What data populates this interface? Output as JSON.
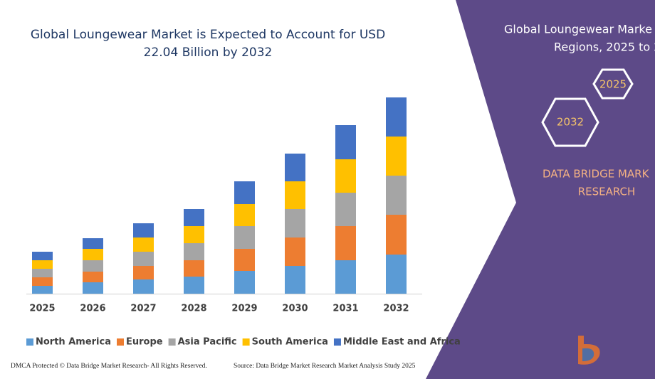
{
  "chart_data": {
    "type": "stacked-bar",
    "title": [
      "Global Loungewear Market is Expected to Account for USD",
      "22.04 Billion by 2032"
    ],
    "categories": [
      "2025",
      "2026",
      "2027",
      "2028",
      "2029",
      "2030",
      "2031",
      "2032"
    ],
    "series": [
      {
        "name": "North America",
        "color": "#5b9bd5",
        "values": [
          11,
          16,
          20,
          24,
          32,
          39,
          47,
          55
        ]
      },
      {
        "name": "Europe",
        "color": "#ed7d31",
        "values": [
          12,
          15,
          19,
          23,
          31,
          40,
          48,
          56
        ]
      },
      {
        "name": "Asia Pacific",
        "color": "#a5a5a5",
        "values": [
          12,
          16,
          20,
          24,
          32,
          40,
          47,
          55
        ]
      },
      {
        "name": "South America",
        "color": "#ffc000",
        "values": [
          12,
          16,
          20,
          24,
          31,
          39,
          47,
          55
        ]
      },
      {
        "name": "Middle East and Africa",
        "color": "#4472c4",
        "values": [
          12,
          15,
          20,
          24,
          32,
          39,
          48,
          55
        ]
      }
    ],
    "legend": "bottom"
  },
  "panel": {
    "title": [
      "Global Loungewear Marke",
      "Regions, 2025 to 2"
    ],
    "hexagons": [
      "2025",
      "2032"
    ],
    "brand": [
      "DATA BRIDGE MARK",
      "RESEARCH"
    ]
  },
  "footer": {
    "left": "DMCA Protected © Data Bridge Market Research-  All Rights Reserved.",
    "right": "Source: Data Bridge Market Research Market Analysis Study 2025"
  }
}
